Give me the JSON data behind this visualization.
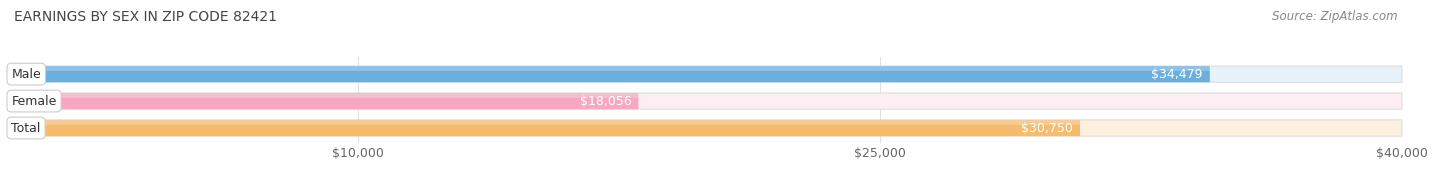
{
  "title": "EARNINGS BY SEX IN ZIP CODE 82421",
  "source": "Source: ZipAtlas.com",
  "categories": [
    "Male",
    "Female",
    "Total"
  ],
  "values": [
    34479,
    18056,
    30750
  ],
  "value_labels": [
    "$34,479",
    "$18,056",
    "$30,750"
  ],
  "bar_colors": [
    "#6ab0de",
    "#f5a8c0",
    "#f5bc6e"
  ],
  "bar_colors_light": [
    "#e8f2fa",
    "#fdeef3",
    "#fdf0e0"
  ],
  "xmin": 0,
  "xmax": 40000,
  "xticks": [
    10000,
    25000,
    40000
  ],
  "xticklabels": [
    "$10,000",
    "$25,000",
    "$40,000"
  ],
  "background_color": "#ffffff",
  "title_fontsize": 10,
  "tick_fontsize": 9,
  "label_fontsize": 9,
  "source_fontsize": 8.5,
  "bar_height": 0.6,
  "value_label_color_inside": "white",
  "value_label_color_outside": "#555555"
}
